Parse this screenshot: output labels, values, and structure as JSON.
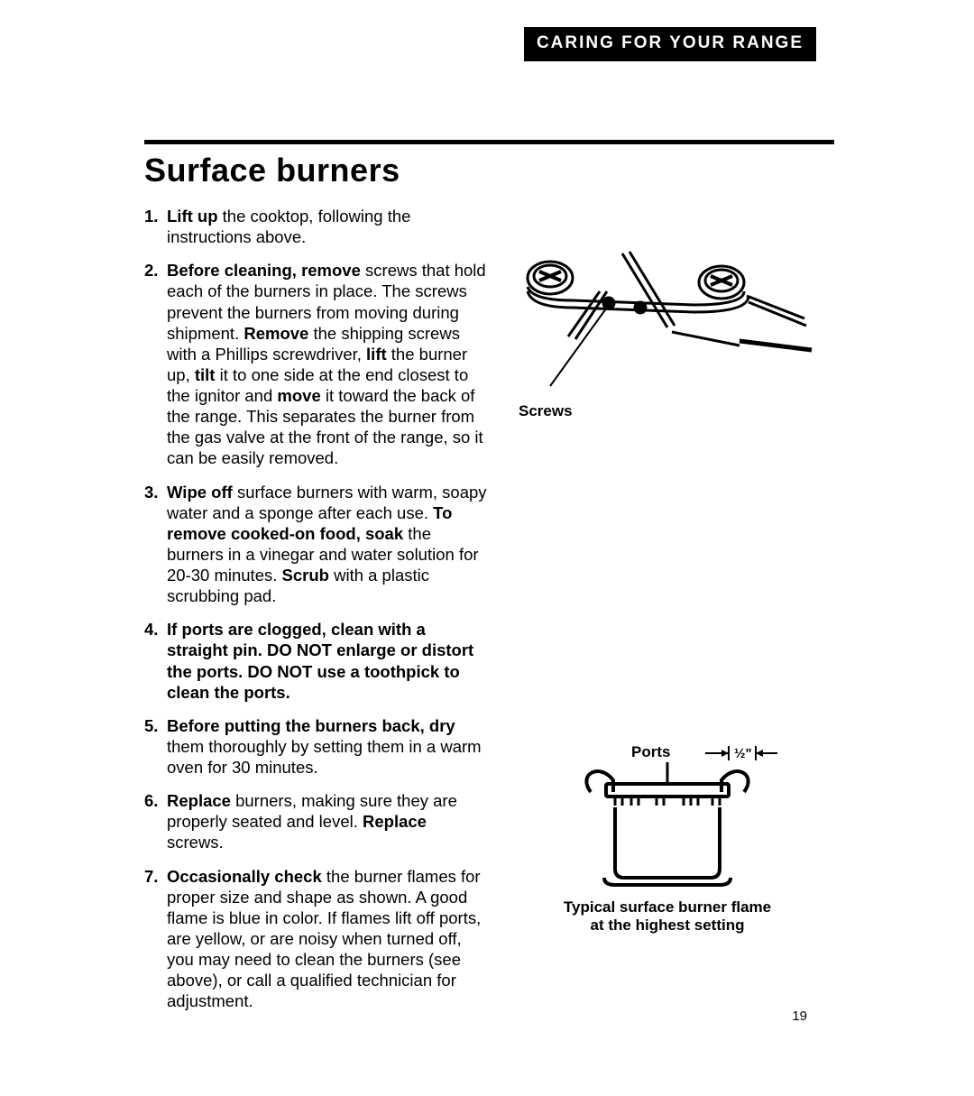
{
  "header": {
    "tab": "CARING FOR YOUR RANGE"
  },
  "section": {
    "title": "Surface burners"
  },
  "steps": [
    {
      "parts": [
        {
          "b": true,
          "t": "Lift up "
        },
        {
          "b": false,
          "t": "the cooktop, following the instructions above."
        }
      ]
    },
    {
      "parts": [
        {
          "b": true,
          "t": "Before cleaning, remove "
        },
        {
          "b": false,
          "t": "screws that hold each of the burners in place. The screws prevent the burners from moving during shipment. "
        },
        {
          "b": true,
          "t": "Remove "
        },
        {
          "b": false,
          "t": "the shipping screws with a Phillips screwdriver, "
        },
        {
          "b": true,
          "t": "lift "
        },
        {
          "b": false,
          "t": "the burner up, "
        },
        {
          "b": true,
          "t": "tilt "
        },
        {
          "b": false,
          "t": "it to one side at the end closest to the ignitor and "
        },
        {
          "b": true,
          "t": "move "
        },
        {
          "b": false,
          "t": "it toward the back of the range. This separates the burner from the gas valve at the front of the range, so it can be easily removed."
        }
      ]
    },
    {
      "parts": [
        {
          "b": true,
          "t": "Wipe off "
        },
        {
          "b": false,
          "t": "surface burners with warm, soapy water and a sponge after each use. "
        },
        {
          "b": true,
          "t": "To remove cooked-on food, soak "
        },
        {
          "b": false,
          "t": "the burners in a vinegar and water solution for 20-30 minutes. "
        },
        {
          "b": true,
          "t": "Scrub "
        },
        {
          "b": false,
          "t": "with a plastic scrubbing pad."
        }
      ]
    },
    {
      "parts": [
        {
          "b": true,
          "t": "If ports are clogged, clean with a straight pin. DO NOT enlarge or distort the ports. DO NOT use a toothpick to clean the ports."
        }
      ]
    },
    {
      "parts": [
        {
          "b": true,
          "t": "Before putting the burners back, dry "
        },
        {
          "b": false,
          "t": "them thoroughly by setting them in a warm oven for 30 minutes."
        }
      ]
    },
    {
      "parts": [
        {
          "b": true,
          "t": "Replace "
        },
        {
          "b": false,
          "t": "burners, making sure they are properly seated and level. "
        },
        {
          "b": true,
          "t": "Replace "
        },
        {
          "b": false,
          "t": "screws."
        }
      ]
    },
    {
      "parts": [
        {
          "b": true,
          "t": "Occasionally check "
        },
        {
          "b": false,
          "t": "the burner flames for proper size and shape as shown. A good flame is blue in color. If flames lift off ports, are yellow, or are noisy when turned off, you may need to clean the burners (see above), or call a qualified technician for adjustment."
        }
      ]
    }
  ],
  "fig1": {
    "label": "Screws"
  },
  "fig2": {
    "ports_label": "Ports",
    "dimension": "½\"",
    "caption_line1": "Typical surface burner flame",
    "caption_line2": "at the highest setting"
  },
  "page_number": "19",
  "colors": {
    "text": "#000000",
    "bg": "#ffffff",
    "tab_bg": "#000000",
    "tab_fg": "#ffffff"
  }
}
